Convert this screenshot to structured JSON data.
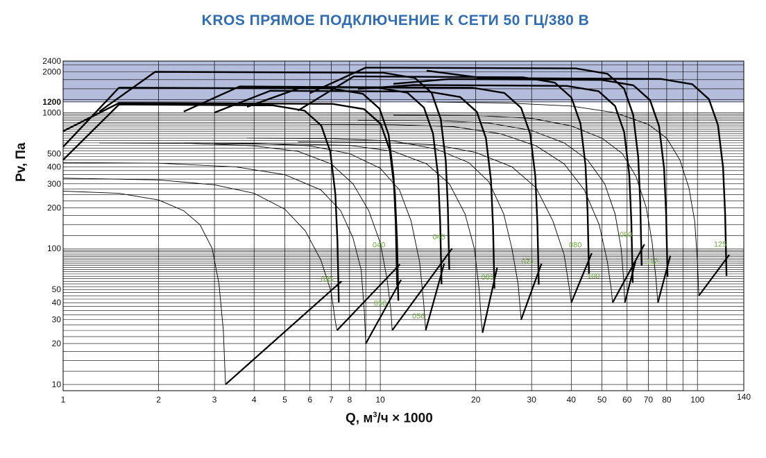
{
  "title": "KROS ПРЯМОЕ ПОДКЛЮЧЕНИЕ К СЕТИ 50 ГЦ/380 В",
  "colors": {
    "title": "#2f6db5",
    "band": "#b4bddc",
    "curve": "#000000",
    "model_label": "#6cae3c",
    "grid": "#000000"
  },
  "chart_data": {
    "type": "line",
    "title": "KROS ПРЯМОЕ ПОДКЛЮЧЕНИЕ К СЕТИ 50 ГЦ/380 В",
    "xlabel": {
      "q": "Q, м",
      "exp": "3",
      "rest": "/ч × 1000"
    },
    "ylabel": "Pv, Па",
    "x_scale": "log",
    "y_scale": "log",
    "xlim": [
      1,
      140
    ],
    "ylim": [
      9,
      2400
    ],
    "x_ticks": [
      "1",
      "2",
      "3",
      "4",
      "5",
      "6",
      "7",
      "8",
      "10",
      "20",
      "30",
      "40",
      "50",
      "60",
      "70",
      "80",
      "100",
      "140"
    ],
    "y_ticks": [
      "10",
      "20",
      "30",
      "40",
      "50",
      "100",
      "200",
      "300",
      "400",
      "500",
      "1000",
      "1200",
      "2000",
      "2400"
    ],
    "grid": true,
    "highlight_band": [
      1200,
      2400
    ],
    "models": [
      {
        "name": "035",
        "label_q": 6.8,
        "label_p": 57,
        "curve": [
          [
            1,
            265
          ],
          [
            1.5,
            255
          ],
          [
            2.0,
            228
          ],
          [
            2.4,
            190
          ],
          [
            2.7,
            150
          ],
          [
            2.95,
            100
          ],
          [
            3.1,
            55
          ],
          [
            3.2,
            25
          ],
          [
            3.25,
            10
          ]
        ],
        "pmax": 1150,
        "qmax": 7.4
      },
      {
        "name": "040",
        "label_q": 9.9,
        "label_p": 102,
        "curve": [
          [
            1,
            330
          ],
          [
            2,
            320
          ],
          [
            3,
            295
          ],
          [
            4,
            255
          ],
          [
            5,
            195
          ],
          [
            5.8,
            135
          ],
          [
            6.5,
            82
          ],
          [
            7.0,
            48
          ],
          [
            7.2,
            30
          ],
          [
            7.3,
            25
          ]
        ],
        "pmax": 1530,
        "qmax": 11.3
      },
      {
        "name": "045",
        "label_q": 15.3,
        "label_p": 117,
        "curve": [
          [
            1.3,
            600
          ],
          [
            2.5,
            595
          ],
          [
            4,
            570
          ],
          [
            5.5,
            520
          ],
          [
            7,
            420
          ],
          [
            8.2,
            300
          ],
          [
            9.2,
            190
          ],
          [
            10,
            110
          ],
          [
            10.5,
            60
          ],
          [
            10.8,
            35
          ],
          [
            10.9,
            25
          ]
        ],
        "pmax": 2000,
        "qmax": 16.5
      },
      {
        "name": "050",
        "label_q": 10.0,
        "label_p": 38,
        "curve": [
          [
            1,
            430
          ],
          [
            2,
            425
          ],
          [
            3.5,
            400
          ],
          [
            5,
            350
          ],
          [
            6.5,
            270
          ],
          [
            7.5,
            190
          ],
          [
            8.2,
            120
          ],
          [
            8.7,
            70
          ],
          [
            8.9,
            35
          ],
          [
            9.0,
            20
          ]
        ],
        "pmax": 1180,
        "qmax": 11.4
      },
      {
        "name": "056",
        "label_q": 13.2,
        "label_p": 30.5,
        "curve": [
          [
            2.4,
            600
          ],
          [
            4,
            595
          ],
          [
            6,
            570
          ],
          [
            8,
            500
          ],
          [
            10,
            390
          ],
          [
            11.5,
            270
          ],
          [
            12.5,
            160
          ],
          [
            13.3,
            80
          ],
          [
            13.7,
            40
          ],
          [
            13.9,
            25
          ]
        ],
        "pmax": 1560,
        "qmax": 15.6
      },
      {
        "name": "063",
        "label_q": 21.8,
        "label_p": 59,
        "curve": [
          [
            3,
            590
          ],
          [
            5,
            588
          ],
          [
            8,
            575
          ],
          [
            11,
            520
          ],
          [
            14,
            420
          ],
          [
            16.5,
            300
          ],
          [
            18.5,
            180
          ],
          [
            19.8,
            100
          ],
          [
            20.5,
            50
          ],
          [
            20.8,
            30
          ],
          [
            21,
            24
          ]
        ],
        "pmax": 1450,
        "qmax": 22.9
      },
      {
        "name": "071",
        "label_q": 29.2,
        "label_p": 77,
        "curve": [
          [
            3.8,
            650
          ],
          [
            7,
            645
          ],
          [
            11,
            620
          ],
          [
            15,
            540
          ],
          [
            19,
            430
          ],
          [
            22,
            310
          ],
          [
            24.5,
            180
          ],
          [
            26,
            100
          ],
          [
            27.2,
            55
          ],
          [
            27.8,
            30
          ]
        ],
        "pmax": 1550,
        "qmax": 31.6
      },
      {
        "name": "080",
        "label_q": 41.2,
        "label_p": 102,
        "curve": [
          [
            5.5,
            610
          ],
          [
            10,
            605
          ],
          [
            15,
            580
          ],
          [
            20,
            510
          ],
          [
            26,
            400
          ],
          [
            31,
            280
          ],
          [
            35,
            160
          ],
          [
            38,
            90
          ],
          [
            39.5,
            50
          ],
          [
            40,
            40
          ]
        ],
        "pmax": 1850,
        "qmax": 45.5
      },
      {
        "name": "090",
        "label_q": 59.5,
        "label_p": 122,
        "curve": [
          [
            6,
            820
          ],
          [
            11,
            815
          ],
          [
            17,
            790
          ],
          [
            24,
            700
          ],
          [
            31,
            570
          ],
          [
            38,
            420
          ],
          [
            44,
            270
          ],
          [
            49,
            150
          ],
          [
            52,
            80
          ],
          [
            53.5,
            50
          ],
          [
            54,
            40
          ]
        ],
        "pmax": 2150,
        "qmax": 66.7
      },
      {
        "name": "100",
        "label_q": 47.0,
        "label_p": 60,
        "curve": [
          [
            8.5,
            880
          ],
          [
            15,
            875
          ],
          [
            22,
            840
          ],
          [
            30,
            740
          ],
          [
            38,
            600
          ],
          [
            45,
            450
          ],
          [
            51,
            300
          ],
          [
            55,
            180
          ],
          [
            57.5,
            100
          ],
          [
            58.5,
            60
          ],
          [
            59,
            40
          ]
        ],
        "pmax": 1600,
        "qmax": 62.5
      },
      {
        "name": "112",
        "label_q": 72.0,
        "label_p": 77,
        "curve": [
          [
            11,
            960
          ],
          [
            20,
            955
          ],
          [
            30,
            910
          ],
          [
            40,
            800
          ],
          [
            50,
            650
          ],
          [
            58,
            500
          ],
          [
            64,
            340
          ],
          [
            69,
            200
          ],
          [
            72,
            110
          ],
          [
            74,
            60
          ],
          [
            75,
            40
          ]
        ],
        "pmax": 1770,
        "qmax": 80.5
      },
      {
        "name": "125",
        "label_q": 118.0,
        "label_p": 103,
        "curve": [
          [
            14,
            1200
          ],
          [
            25,
            1180
          ],
          [
            40,
            1120
          ],
          [
            55,
            1000
          ],
          [
            70,
            820
          ],
          [
            80,
            650
          ],
          [
            88,
            450
          ],
          [
            94,
            280
          ],
          [
            98,
            160
          ],
          [
            100,
            80
          ],
          [
            101,
            45
          ]
        ],
        "pmax": 1800,
        "qmax": 123.5
      }
    ]
  }
}
